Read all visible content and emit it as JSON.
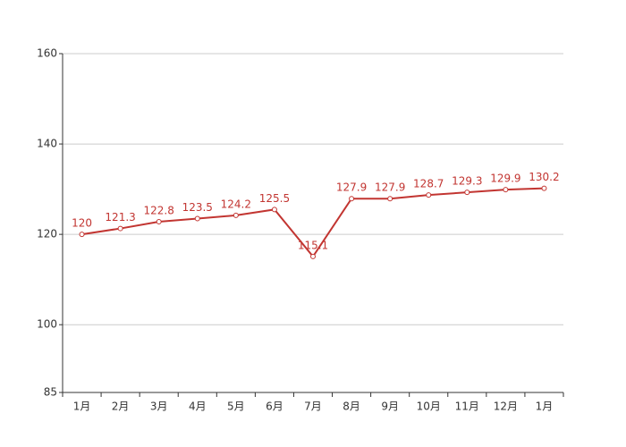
{
  "chart_data": {
    "type": "line",
    "categories": [
      "1月",
      "2月",
      "3月",
      "4月",
      "5月",
      "6月",
      "7月",
      "8月",
      "9月",
      "10月",
      "11月",
      "12月",
      "1月"
    ],
    "series": [
      {
        "color": "#c23531",
        "values": [
          120,
          121.3,
          122.8,
          123.5,
          124.2,
          125.5,
          115.1,
          127.9,
          127.9,
          128.7,
          129.3,
          129.9,
          130.2
        ]
      }
    ],
    "ylim": [
      85,
      160
    ],
    "yticks": [
      85,
      100,
      120,
      140,
      160
    ],
    "grid": true
  }
}
